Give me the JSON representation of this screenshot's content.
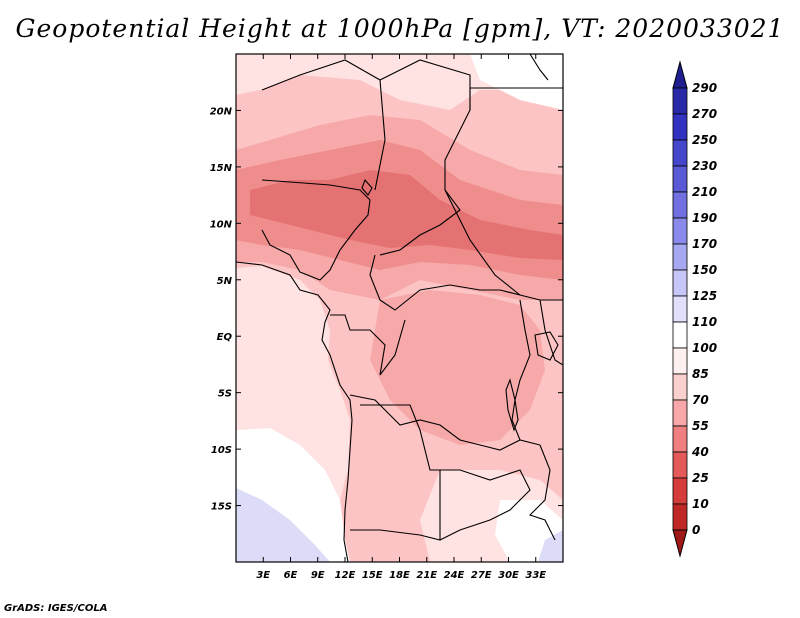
{
  "title": "Geopotential Height at 1000hPa [gpm], VT: 2020033021",
  "credit": "GrADS: IGES/COLA",
  "map": {
    "lon_range": [
      0,
      36
    ],
    "lat_range": [
      -20,
      25
    ],
    "x_ticks": [
      "3E",
      "6E",
      "9E",
      "12E",
      "15E",
      "18E",
      "21E",
      "24E",
      "27E",
      "30E",
      "33E"
    ],
    "x_tick_values": [
      3,
      6,
      9,
      12,
      15,
      18,
      21,
      24,
      27,
      30,
      33
    ],
    "y_ticks": [
      "20N",
      "15N",
      "10N",
      "5N",
      "EQ",
      "5S",
      "10S",
      "15S"
    ],
    "y_tick_values": [
      20,
      15,
      10,
      5,
      0,
      -5,
      -10,
      -15
    ]
  },
  "colorbar": {
    "levels": [
      "290",
      "270",
      "250",
      "230",
      "210",
      "190",
      "170",
      "150",
      "125",
      "110",
      "100",
      "85",
      "70",
      "55",
      "40",
      "25",
      "10",
      "0"
    ],
    "colors": [
      "#1f1f8f",
      "#2828a8",
      "#3232c0",
      "#4646cc",
      "#5a5ad6",
      "#7070e0",
      "#8a8aea",
      "#a8a8f2",
      "#c6c6f8",
      "#e0e0fc",
      "#ffffff",
      "#fff0f0",
      "#fdd0d0",
      "#f8a8a8",
      "#f08080",
      "#e45a5a",
      "#d63c3c",
      "#c02828",
      "#a01818"
    ]
  },
  "field_colors": {
    "c100": "#ffe2e2",
    "c85": "#fcc4c4",
    "c70": "#f7a8a8",
    "c55": "#ef8d8d",
    "c40": "#e57272",
    "c110": "#ffffff",
    "c125": "#dcdcf8"
  }
}
